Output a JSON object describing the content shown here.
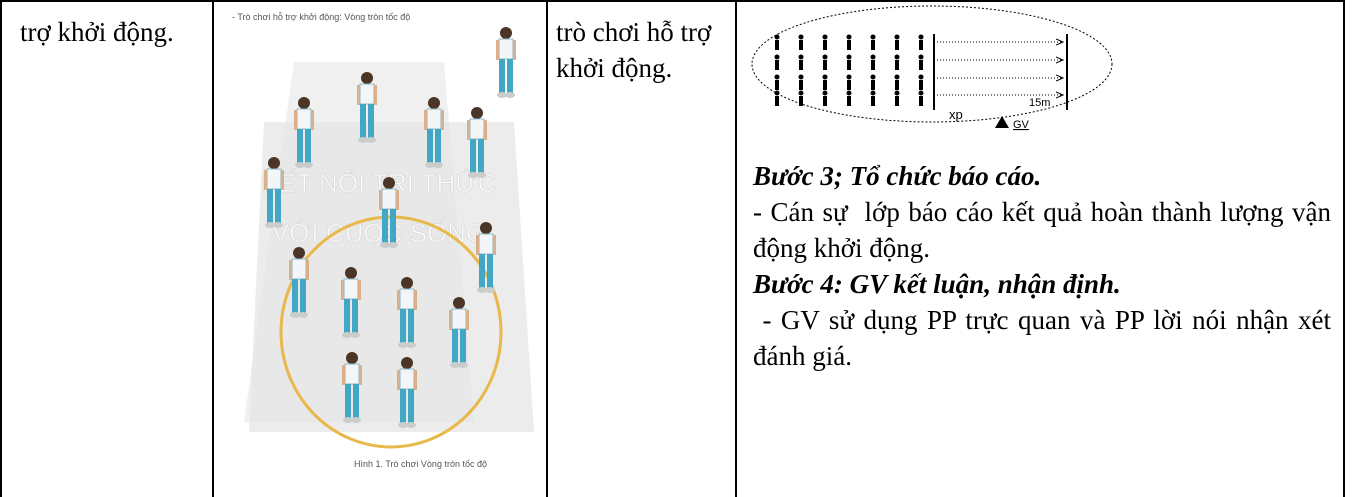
{
  "table": {
    "rows": [
      [
        {
          "text": "trợ khởi động."
        },
        {
          "figure": {
            "heading": "- Trò chơi hỗ trợ khởi động: Vòng tròn tốc độ",
            "watermark": [
              "KẾT NỐI TRI THỨC",
              "VỚI CUỘC SỐNG"
            ],
            "caption": "Hình 1. Trò chơi Vòng tròn tốc độ"
          }
        },
        {
          "text": "trò chơi hỗ trợ khởi động."
        },
        {
          "diagram": {
            "start": "xp",
            "distance": "15m",
            "teacher": "GV"
          },
          "paragraphs": [
            {
              "text": "Bước 3; Tổ chức báo cáo.",
              "emphasis": true
            },
            {
              "text": "- Cán sự  lớp báo cáo kết quả hoàn thành lượng vận động khởi động.",
              "emphasis": false
            },
            {
              "text": "Bước 4: GV kết luận, nhận định.",
              "emphasis": true
            },
            {
              "text": " - GV sử dụng PP trực quan và PP lời nói nhận xét đánh giá.",
              "emphasis": false
            }
          ]
        }
      ]
    ]
  }
}
